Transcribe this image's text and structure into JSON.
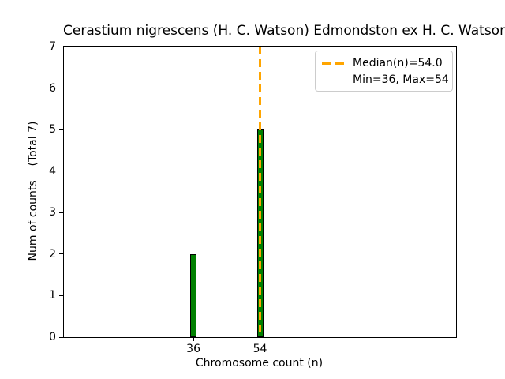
{
  "figure": {
    "title": "Cerastium nigrescens (H. C. Watson) Edmondston ex H. C. Watson",
    "xlabel": "Chromosome count (n)",
    "ylabel": "Num of counts    (Total 7)"
  },
  "legend": {
    "entries": [
      {
        "marker": "orange-dashed-line",
        "label": "Median(n)=54.0"
      },
      {
        "marker": "none",
        "label": "Min=36, Max=54"
      }
    ],
    "position": "upper right"
  },
  "chart_data": {
    "type": "bar",
    "title": "Cerastium nigrescens (H. C. Watson) Edmondston ex H. C. Watson",
    "xlabel": "Chromosome count (n)",
    "ylabel": "Num of counts (Total 7)",
    "categories": [
      36,
      54
    ],
    "values": [
      2,
      5
    ],
    "total_counts": 7,
    "median": 54.0,
    "min": 36,
    "max": 54,
    "xticks": [
      36,
      54
    ],
    "yticks": [
      0,
      1,
      2,
      3,
      4,
      5,
      6,
      7
    ],
    "xlim": [
      1,
      107
    ],
    "ylim": [
      0,
      7
    ],
    "grid": false,
    "bar_color": "#008000",
    "bar_edge_color": "#000000",
    "median_line_color": "#FFA500",
    "median_line_style": "dashed",
    "legend_position": "upper right"
  },
  "colors": {
    "background": "#ffffff",
    "axes": "#000000",
    "bar_green": "#008000",
    "median_orange": "#FFA500",
    "legend_border": "#cccccc"
  }
}
